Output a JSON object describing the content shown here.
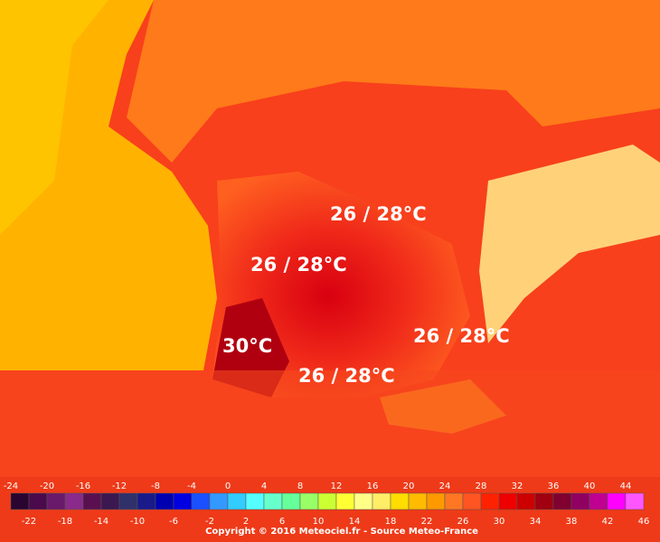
{
  "annotations": [
    "26 / 28°C",
    "26 / 28°C",
    "30°C",
    "26 / 28°C",
    "26 / 28°C"
  ],
  "legend": {
    "top_labels": [
      "-24",
      "-20",
      "-16",
      "-12",
      "-8",
      "-4",
      "0",
      "4",
      "8",
      "12",
      "16",
      "20",
      "24",
      "28",
      "32",
      "36",
      "40",
      "44"
    ],
    "bottom_labels": [
      "-22",
      "-18",
      "-14",
      "-10",
      "-6",
      "-2",
      "2",
      "6",
      "10",
      "14",
      "18",
      "22",
      "26",
      "30",
      "34",
      "38",
      "42",
      "46"
    ],
    "colors": [
      "#2a0530",
      "#4b0a4b",
      "#6a1a6a",
      "#8a2a8a",
      "#5a1050",
      "#3c1850",
      "#30306a",
      "#1a1a8a",
      "#0000b0",
      "#0000e0",
      "#1a50ff",
      "#3399ff",
      "#33ccff",
      "#55ffff",
      "#66ffcc",
      "#66ff99",
      "#99ff66",
      "#ccff33",
      "#ffff33",
      "#ffff88",
      "#ffee66",
      "#ffdd00",
      "#ffbb00",
      "#ff9900",
      "#ff7722",
      "#ff5522",
      "#ff2200",
      "#ee0000",
      "#cc0000",
      "#a00010",
      "#800030",
      "#900060",
      "#c00090",
      "#ff00ff",
      "#ff55ff"
    ]
  },
  "copyright": "Copyright © 2016 Meteociel.fr - Source Meteo-France"
}
